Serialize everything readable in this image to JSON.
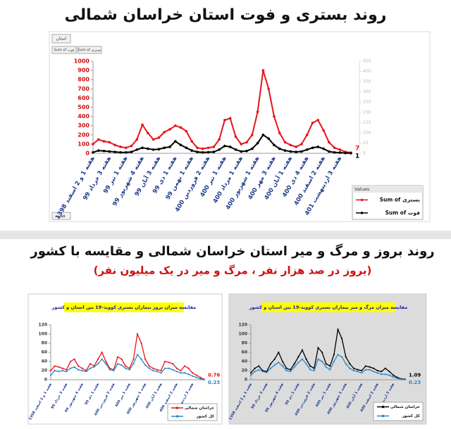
{
  "section_title": "روند بروز و مرگ و میر استان خراسان شمالی و مقایسه با کشور",
  "section_subtitle": "(بروز در صد هزار نفر ، مرگ و میر در یک میلیون نفر)",
  "chart_data": [
    {
      "type": "line",
      "title": "روند بستری و فوت استان خراسان شمالی",
      "filter_label": "استان",
      "field_buttons": [
        "Sum of فوت",
        "Sum of بستری"
      ],
      "legend_title": "Values",
      "axis_field": "هفته",
      "categories": [
        "هفته 1 و 2 اسفند 1398",
        null,
        null,
        "هفته 3 خرداد 99",
        null,
        null,
        "هفته 1 تیر 99",
        null,
        null,
        "هفته 4 شهریور 99",
        null,
        null,
        "هفته 3 آبان 99",
        null,
        null,
        "هفته 1 دی 99",
        null,
        null,
        "هفته 1 بهمن 99",
        null,
        null,
        "هفته 2 فروردین 400",
        null,
        null,
        "هفته 1 تیر 400",
        null,
        null,
        "هفته 1 مرداد 400",
        null,
        null,
        "هفته 1 شهریور 400",
        null,
        null,
        "هفته 3 مهر 400",
        null,
        null,
        "هفته 1 آبان 400",
        null,
        null,
        "هفته 4 دی 400",
        null,
        null,
        "هفته 2 اسفند 400",
        null,
        null,
        "هفته 3 اردیبهشت 401",
        null,
        null
      ],
      "series": [
        {
          "name": "Sum of بستری",
          "color": "#e8141b",
          "values": [
            100,
            150,
            130,
            120,
            90,
            70,
            60,
            80,
            150,
            310,
            220,
            150,
            170,
            230,
            260,
            300,
            280,
            240,
            130,
            60,
            50,
            60,
            70,
            150,
            360,
            380,
            180,
            100,
            120,
            200,
            450,
            900,
            700,
            400,
            220,
            120,
            90,
            70,
            100,
            200,
            330,
            360,
            250,
            120,
            60,
            40,
            15,
            7
          ]
        },
        {
          "name": "Sum of فوت",
          "color": "#000000",
          "values": [
            10,
            30,
            25,
            20,
            15,
            10,
            10,
            15,
            40,
            60,
            50,
            40,
            45,
            60,
            70,
            130,
            90,
            60,
            30,
            15,
            10,
            12,
            15,
            40,
            80,
            70,
            40,
            20,
            25,
            50,
            110,
            200,
            160,
            90,
            50,
            30,
            20,
            15,
            20,
            40,
            60,
            70,
            50,
            20,
            10,
            8,
            3,
            1
          ]
        }
      ],
      "ylim": [
        0,
        1000
      ],
      "yticks": [
        0,
        100,
        200,
        300,
        400,
        500,
        600,
        700,
        800,
        900,
        1000
      ],
      "y2lim": [
        0,
        450
      ],
      "y2ticks": [
        0,
        50,
        100,
        150,
        200,
        250,
        300,
        350,
        400,
        450
      ],
      "grid": false
    },
    {
      "type": "line",
      "title": "مقایسه میزان بروز بیماران بستری کووید-19 بین استان و کشور",
      "categories": [
        "هفته 1 و 2 اسفند 1398",
        null,
        null,
        null,
        "هفته 3 خرداد 99",
        null,
        null,
        null,
        "هفته 4 شهریور 99",
        null,
        null,
        null,
        "هفته 1 دی 99",
        null,
        null,
        null,
        "هفته 2 فروردین 400",
        null,
        null,
        null,
        "هفته 1 تیر 400",
        null,
        null,
        null,
        "هفته 1 شهریور 400",
        null,
        null,
        null,
        "هفته 1 آبان 400",
        null,
        null,
        null,
        "هفته 2 اسفند 400",
        null,
        null,
        null,
        "هفته 3 اردیبهشت 401",
        null,
        null,
        null
      ],
      "series": [
        {
          "name": "خراسان شمالی",
          "color": "#e8141b",
          "values": [
            20,
            30,
            28,
            25,
            22,
            40,
            45,
            30,
            25,
            20,
            35,
            30,
            45,
            60,
            40,
            25,
            22,
            50,
            45,
            30,
            25,
            45,
            100,
            80,
            45,
            30,
            25,
            22,
            20,
            40,
            38,
            35,
            25,
            20,
            30,
            25,
            15,
            10,
            5,
            0.76
          ]
        },
        {
          "name": "کل کشور",
          "color": "#2e86c8",
          "values": [
            10,
            20,
            18,
            20,
            18,
            25,
            28,
            22,
            20,
            18,
            25,
            28,
            35,
            45,
            35,
            22,
            20,
            35,
            32,
            25,
            22,
            35,
            55,
            45,
            32,
            25,
            20,
            18,
            15,
            25,
            25,
            22,
            18,
            15,
            15,
            12,
            8,
            5,
            2,
            0.23
          ]
        }
      ],
      "ylim": [
        0,
        120
      ],
      "yticks": [
        0,
        20,
        40,
        60,
        80,
        100,
        120
      ],
      "grid": false
    },
    {
      "type": "line",
      "title": "مقایسه میزان مرگ و میر بیماران بستری کووید-19 بین استان و کشور",
      "categories": [
        "هفته 1 و 2 اسفند 1398",
        null,
        null,
        null,
        "هفته 3 خرداد 99",
        null,
        null,
        null,
        "هفته 4 شهریور 99",
        null,
        null,
        null,
        "هفته 1 دی 99",
        null,
        null,
        null,
        "هفته 2 فروردین 400",
        null,
        null,
        null,
        "هفته 1 تیر 400",
        null,
        null,
        null,
        "هفته 1 شهریور 400",
        null,
        null,
        null,
        "هفته 1 آبان 400",
        null,
        null,
        null,
        "هفته 2 اسفند 400",
        null,
        null,
        null,
        "هفته 3 اردیبهشت 401",
        null,
        null,
        null
      ],
      "series": [
        {
          "name": "خراسان شمالی",
          "color": "#000000",
          "values": [
            15,
            25,
            30,
            20,
            18,
            35,
            45,
            60,
            40,
            25,
            22,
            35,
            50,
            65,
            45,
            30,
            25,
            70,
            60,
            35,
            30,
            55,
            110,
            90,
            50,
            35,
            25,
            22,
            20,
            30,
            28,
            25,
            20,
            18,
            25,
            18,
            10,
            5,
            2,
            1.09
          ]
        },
        {
          "name": "کل کشور",
          "color": "#2e86c8",
          "values": [
            10,
            18,
            22,
            18,
            16,
            25,
            32,
            38,
            30,
            20,
            18,
            28,
            38,
            45,
            35,
            22,
            20,
            45,
            40,
            28,
            22,
            40,
            55,
            50,
            35,
            25,
            20,
            18,
            15,
            22,
            22,
            18,
            15,
            12,
            12,
            10,
            6,
            3,
            1,
            0.23
          ]
        }
      ],
      "ylim": [
        0,
        120
      ],
      "yticks": [
        0,
        20,
        40,
        60,
        80,
        100,
        120
      ],
      "grid": false
    }
  ]
}
